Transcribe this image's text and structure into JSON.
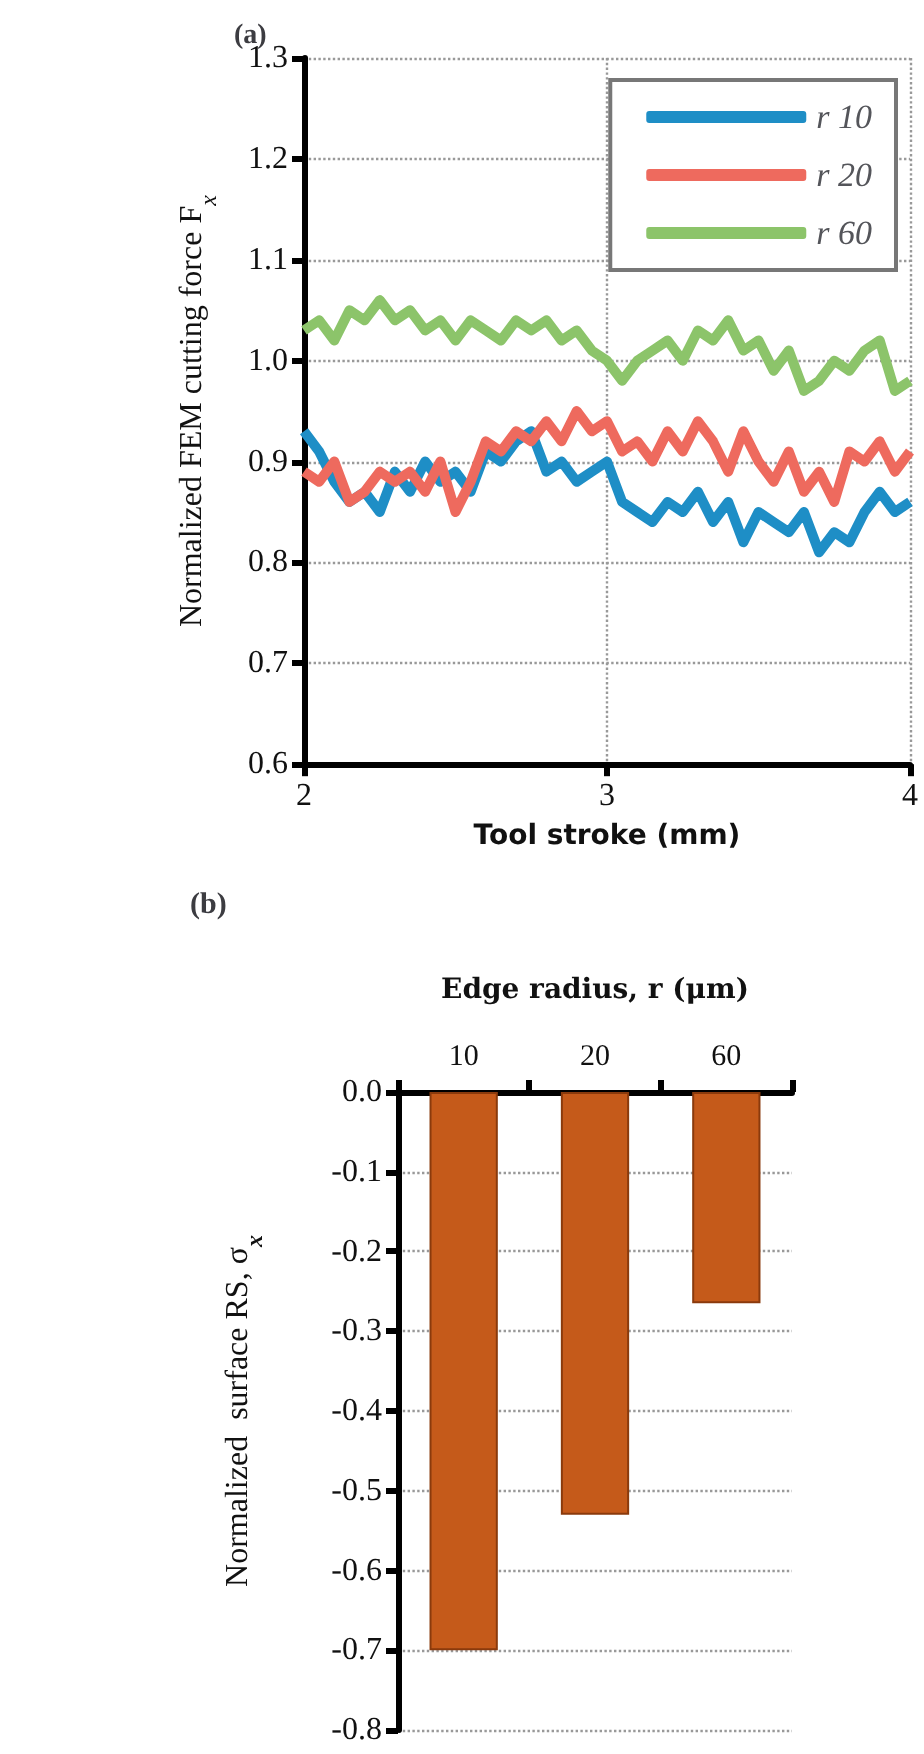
{
  "chart_data": [
    {
      "type": "line",
      "title": "(a)",
      "xlabel": "Tool stroke (mm)",
      "ylabel": "Normalized FEM cutting force F$_{x}$",
      "x": [
        2,
        2.05,
        2.1,
        2.15,
        2.2,
        2.25,
        2.3,
        2.35,
        2.4,
        2.45,
        2.5,
        2.55,
        2.6,
        2.65,
        2.7,
        2.75,
        2.8,
        2.85,
        2.9,
        2.95,
        3,
        3.05,
        3.1,
        3.15,
        3.2,
        3.25,
        3.3,
        3.35,
        3.4,
        3.45,
        3.5,
        3.55,
        3.6,
        3.65,
        3.7,
        3.75,
        3.8,
        3.85,
        3.9,
        3.95,
        4
      ],
      "series": [
        {
          "name": "r 10",
          "color": "#1e8ec6",
          "values": [
            0.93,
            0.91,
            0.88,
            0.86,
            0.87,
            0.85,
            0.89,
            0.87,
            0.9,
            0.88,
            0.89,
            0.87,
            0.91,
            0.9,
            0.92,
            0.93,
            0.89,
            0.9,
            0.88,
            0.89,
            0.9,
            0.86,
            0.85,
            0.84,
            0.86,
            0.85,
            0.87,
            0.84,
            0.86,
            0.82,
            0.85,
            0.84,
            0.83,
            0.85,
            0.81,
            0.83,
            0.82,
            0.85,
            0.87,
            0.85,
            0.86
          ]
        },
        {
          "name": "r 20",
          "color": "#ee6a5e",
          "values": [
            0.89,
            0.88,
            0.9,
            0.86,
            0.87,
            0.89,
            0.88,
            0.89,
            0.87,
            0.9,
            0.85,
            0.88,
            0.92,
            0.91,
            0.93,
            0.92,
            0.94,
            0.92,
            0.95,
            0.93,
            0.94,
            0.91,
            0.92,
            0.9,
            0.93,
            0.91,
            0.94,
            0.92,
            0.89,
            0.93,
            0.9,
            0.88,
            0.91,
            0.87,
            0.89,
            0.86,
            0.91,
            0.9,
            0.92,
            0.89,
            0.91
          ]
        },
        {
          "name": "r 60",
          "color": "#8cc46a",
          "values": [
            1.03,
            1.04,
            1.02,
            1.05,
            1.04,
            1.06,
            1.04,
            1.05,
            1.03,
            1.04,
            1.02,
            1.04,
            1.03,
            1.02,
            1.04,
            1.03,
            1.04,
            1.02,
            1.03,
            1.01,
            1,
            0.98,
            1,
            1.01,
            1.02,
            1,
            1.03,
            1.02,
            1.04,
            1.01,
            1.02,
            0.99,
            1.01,
            0.97,
            0.98,
            1,
            0.99,
            1.01,
            1.02,
            0.97,
            0.98
          ]
        }
      ],
      "xlim": [
        2,
        4
      ],
      "xticks": [
        2,
        3,
        4
      ],
      "ylim": [
        0.6,
        1.3
      ],
      "yticks": [
        {
          "value": 0.6,
          "label": "0.6"
        },
        {
          "value": 0.7,
          "label": "0.7"
        },
        {
          "value": 0.8,
          "label": "0.8"
        },
        {
          "value": 0.9,
          "label": "0.9"
        },
        {
          "value": 1,
          "label": "1.0"
        },
        {
          "value": 1.1,
          "label": "1.1"
        },
        {
          "value": 1.2,
          "label": "1.2"
        },
        {
          "value": 1.3,
          "label": "1.3"
        }
      ],
      "grid": true,
      "legend": "top right"
    },
    {
      "type": "bar",
      "title": "(b)",
      "xlabel": "Edge radius, r (μm)",
      "ylabel": "Normalized  surface RS, σ$_{x}$",
      "categories": [
        "10",
        "20",
        "60"
      ],
      "values": [
        -0.7,
        -0.53,
        -0.265
      ],
      "color": "#c55a1a",
      "ylim": [
        -0.8,
        0
      ],
      "yticks": [
        {
          "value": -0.8,
          "label": "-0.8"
        },
        {
          "value": -0.7,
          "label": "-0.7"
        },
        {
          "value": -0.6,
          "label": "-0.6"
        },
        {
          "value": -0.5,
          "label": "-0.5"
        },
        {
          "value": -0.4,
          "label": "-0.4"
        },
        {
          "value": -0.3,
          "label": "-0.3"
        },
        {
          "value": -0.2,
          "label": "-0.2"
        },
        {
          "value": -0.1,
          "label": "-0.1"
        },
        {
          "value": 0,
          "label": "0.0"
        }
      ],
      "grid": "y"
    }
  ]
}
